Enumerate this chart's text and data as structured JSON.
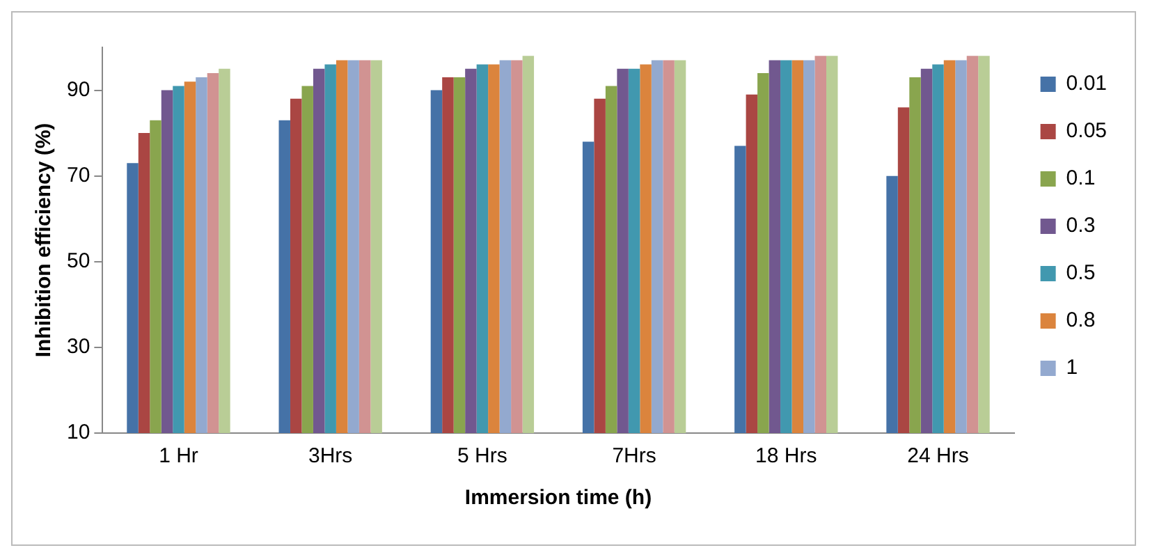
{
  "chart_data": {
    "type": "bar",
    "xlabel": "Immersion time (h)",
    "ylabel": "Inhibition efficiency (%)",
    "categories": [
      "1 Hr",
      "3Hrs",
      "5 Hrs",
      "7Hrs",
      "18 Hrs",
      "24 Hrs"
    ],
    "series": [
      {
        "name": "0.01",
        "color": "#4572a7",
        "values": [
          73,
          83,
          90,
          78,
          77,
          70
        ]
      },
      {
        "name": "0.05",
        "color": "#aa4643",
        "values": [
          80,
          88,
          93,
          88,
          89,
          86
        ]
      },
      {
        "name": "0.1",
        "color": "#89a54e",
        "values": [
          83,
          91,
          93,
          91,
          94,
          93
        ]
      },
      {
        "name": "0.3",
        "color": "#71588f",
        "values": [
          90,
          95,
          95,
          95,
          97,
          95
        ]
      },
      {
        "name": "0.5",
        "color": "#4198af",
        "values": [
          91,
          96,
          96,
          95,
          97,
          96
        ]
      },
      {
        "name": "0.8",
        "color": "#db843d",
        "values": [
          92,
          97,
          96,
          96,
          97,
          97
        ]
      },
      {
        "name": "1",
        "color": "#93a9cf",
        "values": [
          93,
          97,
          97,
          97,
          97,
          97
        ]
      },
      {
        "color": "#d19392",
        "values": [
          94,
          97,
          97,
          97,
          98,
          98
        ]
      },
      {
        "color": "#b9cd96",
        "values": [
          95,
          97,
          98,
          97,
          98,
          98
        ]
      }
    ],
    "ylim": [
      10,
      100
    ],
    "yticks": [
      10,
      30,
      50,
      70,
      90
    ],
    "grid": false,
    "legend": "right"
  }
}
